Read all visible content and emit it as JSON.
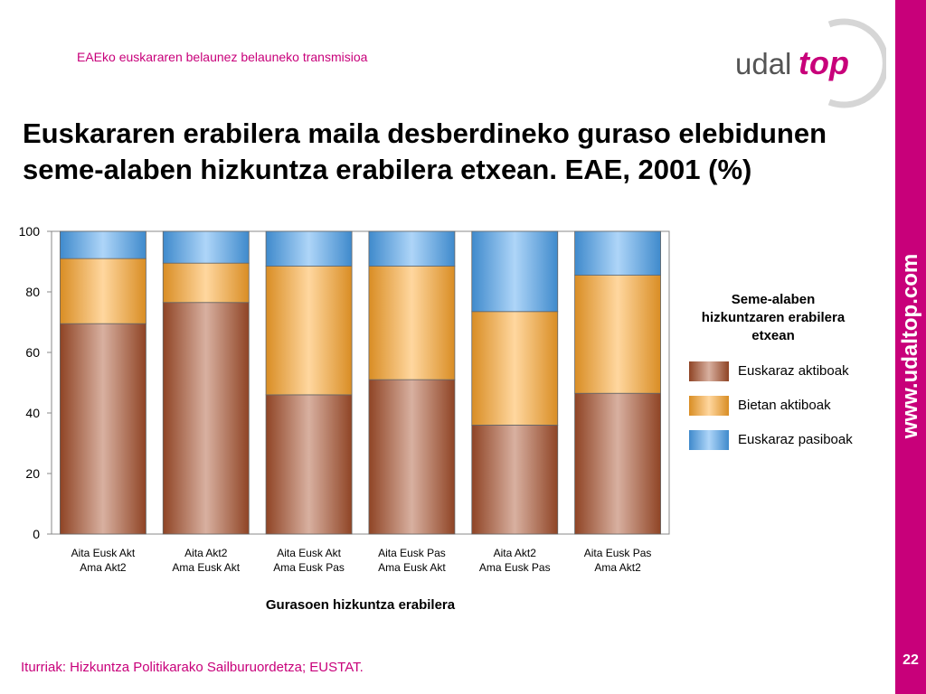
{
  "header": {
    "subtitle": "EAEko euskararen belaunez belauneko transmisioa"
  },
  "logo": {
    "part1": "udal",
    "part2": "top"
  },
  "title": {
    "line1": "Euskararen erabilera maila desberdineko guraso elebidunen",
    "line2": "seme-alaben hizkuntza erabilera etxean.  EAE, 2001 (%)"
  },
  "side": {
    "url": "www.udaltop.com",
    "page_number": "22"
  },
  "footer": {
    "source": "Iturriak: Hizkuntza Politikarako Sailburuordetza; EUSTAT."
  },
  "legend": {
    "title_lines": [
      "Seme-alaben",
      "hizkuntzaren erabilera",
      "etxean"
    ],
    "items": [
      "Euskaraz aktiboak",
      "Bietan aktiboak",
      "Euskaraz pasiboak"
    ]
  },
  "colors": {
    "brand": "#c8007a",
    "series_1": "#a8502c",
    "series_2": "#ffa62a",
    "series_3": "#4aa2f0"
  },
  "chart_data": {
    "type": "bar",
    "stacked": true,
    "categories": [
      [
        "Aita Eusk Akt",
        "Ama Akt2"
      ],
      [
        "Aita Akt2",
        "Ama Eusk Akt"
      ],
      [
        "Aita Eusk Akt",
        "Ama Eusk Pas"
      ],
      [
        "Aita Eusk Pas",
        "Ama Eusk Akt"
      ],
      [
        "Aita Akt2",
        "Ama Eusk Pas"
      ],
      [
        "Aita Eusk Pas",
        "Ama Akt2"
      ]
    ],
    "series": [
      {
        "name": "Euskaraz aktiboak",
        "values": [
          69.5,
          76.5,
          46.0,
          51.0,
          36.0,
          46.5
        ]
      },
      {
        "name": "Bietan aktiboak",
        "values": [
          21.5,
          13.0,
          42.5,
          37.5,
          37.5,
          39.0
        ]
      },
      {
        "name": "Euskaraz pasiboak",
        "values": [
          9.0,
          10.5,
          11.5,
          11.5,
          26.5,
          14.5
        ]
      }
    ],
    "xlabel": "Gurasoen hizkuntza erabilera",
    "ylabel": "",
    "ylim": [
      0,
      100
    ],
    "yticks": [
      0,
      20,
      40,
      60,
      80,
      100
    ],
    "grid": false,
    "legend_position": "right"
  }
}
